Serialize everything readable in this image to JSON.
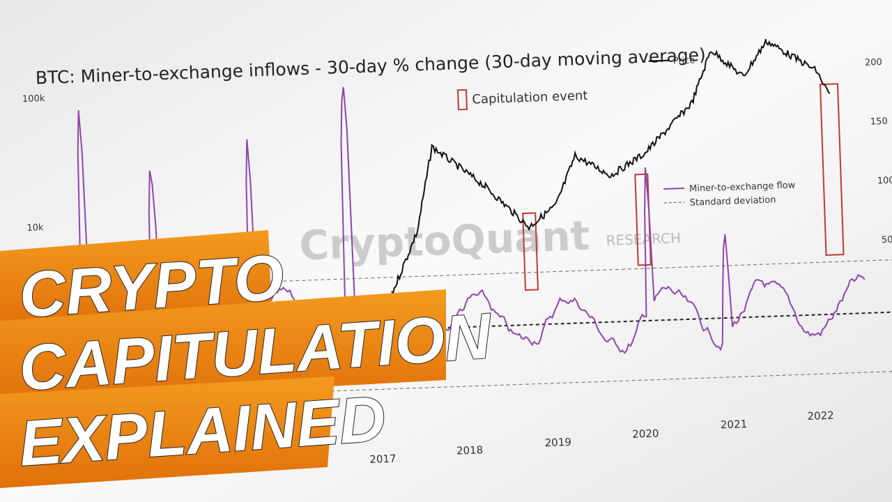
{
  "chart": {
    "title": "BTC: Miner-to-exchange inflows - 30-day % change (30-day moving average)",
    "y_labels": [
      "100k",
      "10k"
    ],
    "right_labels": [
      "200",
      "150",
      "100",
      "50"
    ],
    "x_labels": [
      "2017",
      "2018",
      "2019",
      "2020",
      "2021",
      "2022"
    ],
    "legend_price": "Price",
    "legend_capitulation": "Capitulation event",
    "legend_flow": "Miner-to-exchange flow",
    "legend_std": "Standard deviation",
    "watermark": "CryptoQuant",
    "watermark_sub": "RESEARCH"
  },
  "banner": {
    "lines": [
      "CRYPTO",
      "CAPITULATION",
      "EXPLAINED"
    ]
  }
}
